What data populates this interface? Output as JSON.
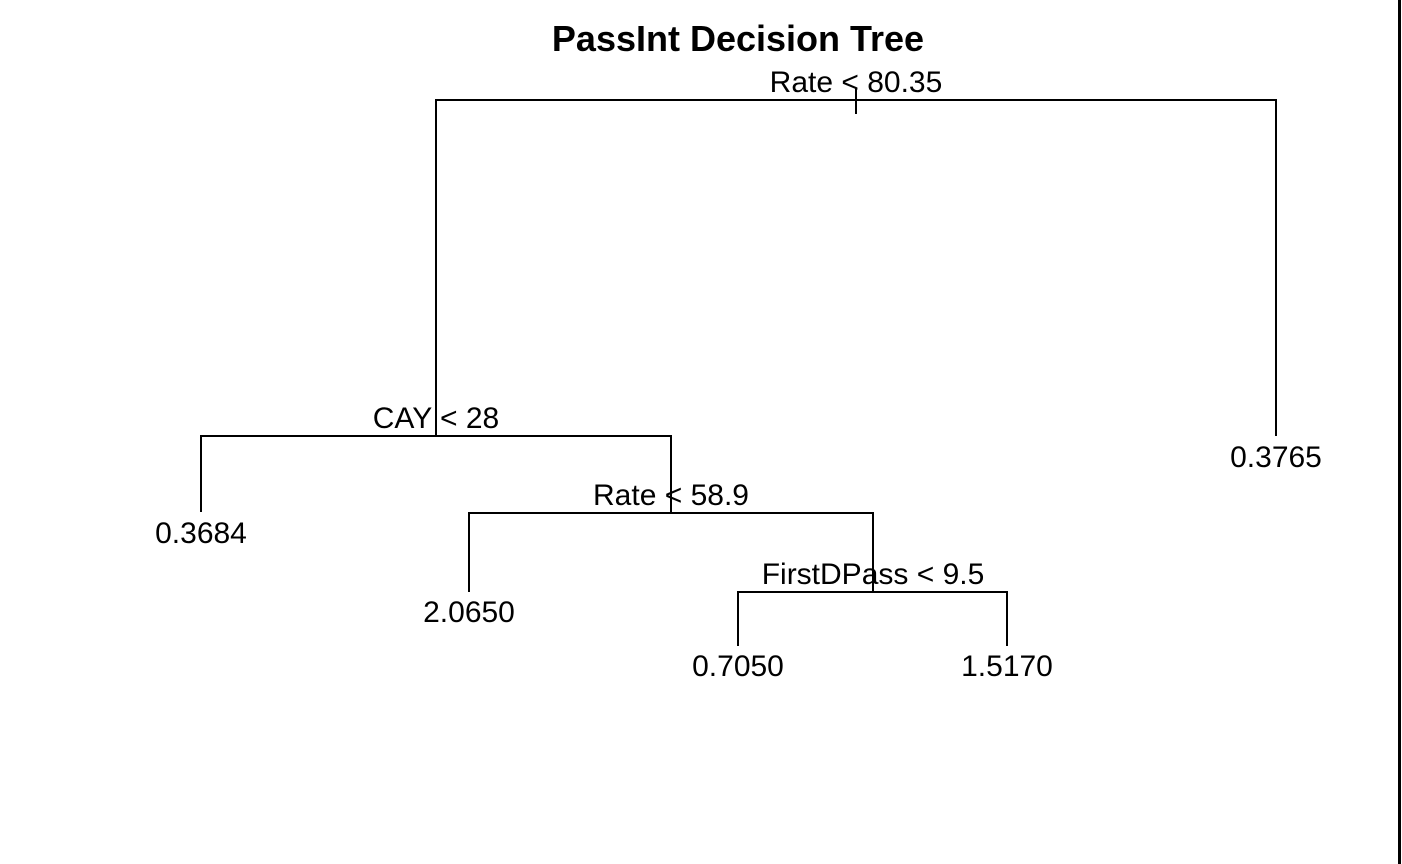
{
  "title": "PassInt Decision Tree",
  "tree": {
    "root": {
      "split": "Rate < 80.35",
      "left": {
        "split": "CAY < 28",
        "left": {
          "leaf": "0.3684"
        },
        "right": {
          "split": "Rate < 58.9",
          "left": {
            "leaf": "2.0650"
          },
          "right": {
            "split": "FirstDPass < 9.5",
            "left": {
              "leaf": "0.7050"
            },
            "right": {
              "leaf": "1.5170"
            }
          }
        }
      },
      "right": {
        "leaf": "0.3765"
      }
    }
  }
}
